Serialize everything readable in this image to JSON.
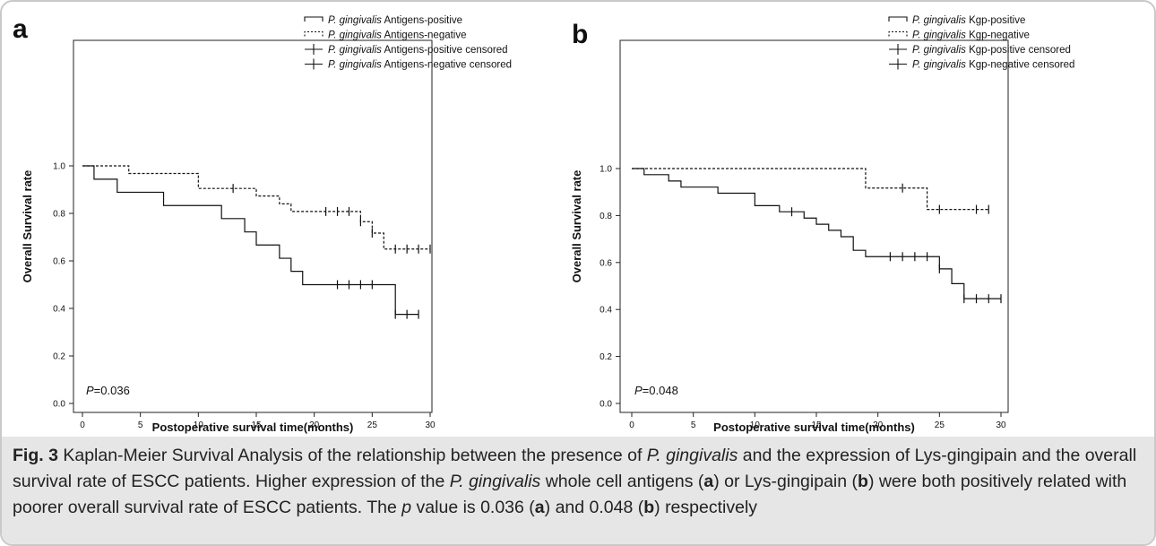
{
  "chart_data": [
    {
      "type": "line",
      "panel_label": "a",
      "xlabel": "Postoperative survival time(months)",
      "ylabel": "Overall Survival rate",
      "xlim": [
        0,
        30
      ],
      "ylim": [
        0,
        1
      ],
      "xticks": [
        "0",
        "5",
        "10",
        "15",
        "20",
        "25",
        "30"
      ],
      "yticks": [
        "0.0",
        "0.2",
        "0.4",
        "0.6",
        "0.8",
        "1.0"
      ],
      "annotation_prefix": "P",
      "annotation_value": "=0.036",
      "legend_placement": "top-right",
      "legend": [
        {
          "name_italic": "P. gingivalis",
          "name_rest": " Antigens-positive",
          "style": "solid"
        },
        {
          "name_italic": "P. gingivalis",
          "name_rest": " Antigens-negative",
          "style": "dashed"
        },
        {
          "name_italic": "P. gingivalis",
          "name_rest": " Antigens-positive censored",
          "style": "censor"
        },
        {
          "name_italic": "P. gingivalis",
          "name_rest": " Antigens-negative censored",
          "style": "censor"
        }
      ],
      "series": [
        {
          "style": "solid",
          "end_x": 29,
          "steps": [
            [
              0,
              1.0
            ],
            [
              1,
              0.944
            ],
            [
              3,
              0.889
            ],
            [
              7,
              0.833
            ],
            [
              12,
              0.778
            ],
            [
              14,
              0.722
            ],
            [
              15,
              0.667
            ],
            [
              17,
              0.611
            ],
            [
              18,
              0.556
            ],
            [
              19,
              0.5
            ],
            [
              27,
              0.375
            ]
          ],
          "censored": [
            [
              22,
              0.5
            ],
            [
              23,
              0.5
            ],
            [
              24,
              0.5
            ],
            [
              25,
              0.5
            ],
            [
              27,
              0.375
            ],
            [
              28,
              0.375
            ],
            [
              29,
              0.375
            ]
          ]
        },
        {
          "style": "dashed",
          "end_x": 30,
          "steps": [
            [
              0,
              1.0
            ],
            [
              4,
              0.968
            ],
            [
              10,
              0.905
            ],
            [
              15,
              0.873
            ],
            [
              17,
              0.84
            ],
            [
              18,
              0.808
            ],
            [
              24,
              0.765
            ],
            [
              25,
              0.717
            ],
            [
              26,
              0.65
            ]
          ],
          "censored": [
            [
              13,
              0.905
            ],
            [
              21,
              0.808
            ],
            [
              22,
              0.808
            ],
            [
              23,
              0.808
            ],
            [
              24,
              0.765
            ],
            [
              25,
              0.717
            ],
            [
              27,
              0.65
            ],
            [
              28,
              0.65
            ],
            [
              29,
              0.65
            ],
            [
              30,
              0.65
            ]
          ]
        }
      ]
    },
    {
      "type": "line",
      "panel_label": "b",
      "xlabel": "Postoperative survival time(months)",
      "ylabel": "Overall Survival rate",
      "xlim": [
        0,
        30
      ],
      "ylim": [
        0,
        1
      ],
      "xticks": [
        "0",
        "5",
        "10",
        "15",
        "20",
        "25",
        "30"
      ],
      "yticks": [
        "0.0",
        "0.2",
        "0.4",
        "0.6",
        "0.8",
        "1.0"
      ],
      "annotation_prefix": "P",
      "annotation_value": "=0.048",
      "legend_placement": "top-right",
      "legend": [
        {
          "name_italic": "P. gingivalis",
          "name_rest": " Kgp-positive",
          "style": "solid"
        },
        {
          "name_italic": "P. gingivalis",
          "name_rest": " Kgp-negative",
          "style": "dashed"
        },
        {
          "name_italic": "P. gingivalis",
          "name_rest": " Kgp-positive censored",
          "style": "censor"
        },
        {
          "name_italic": "P. gingivalis",
          "name_rest": " Kgp-negative censored",
          "style": "censor"
        }
      ],
      "series": [
        {
          "style": "solid",
          "end_x": 30,
          "steps": [
            [
              0,
              1.0
            ],
            [
              1,
              0.974
            ],
            [
              3,
              0.947
            ],
            [
              4,
              0.921
            ],
            [
              7,
              0.895
            ],
            [
              10,
              0.842
            ],
            [
              12,
              0.816
            ],
            [
              14,
              0.789
            ],
            [
              15,
              0.763
            ],
            [
              16,
              0.737
            ],
            [
              17,
              0.71
            ],
            [
              18,
              0.652
            ],
            [
              19,
              0.625
            ],
            [
              25,
              0.573
            ],
            [
              26,
              0.51
            ],
            [
              27,
              0.446
            ]
          ],
          "censored": [
            [
              13,
              0.816
            ],
            [
              21,
              0.625
            ],
            [
              22,
              0.625
            ],
            [
              23,
              0.625
            ],
            [
              24,
              0.625
            ],
            [
              25,
              0.573
            ],
            [
              27,
              0.446
            ],
            [
              28,
              0.446
            ],
            [
              29,
              0.446
            ],
            [
              30,
              0.446
            ]
          ]
        },
        {
          "style": "dashed",
          "end_x": 29,
          "steps": [
            [
              0,
              1.0
            ],
            [
              19,
              0.917
            ],
            [
              24,
              0.826
            ]
          ],
          "censored": [
            [
              22,
              0.917
            ],
            [
              25,
              0.826
            ],
            [
              28,
              0.826
            ],
            [
              29,
              0.826
            ]
          ]
        }
      ]
    }
  ],
  "caption": {
    "fig_label": "Fig. 3",
    "line1_a": " Kaplan-Meier Survival Analysis of the relationship between the presence of ",
    "line1_i": "P. gingivalis",
    "line1_b": " and the expression of Lys-gingipain and the overall",
    "line2_a": "survival rate of ESCC patients. Higher expression of the ",
    "line2_i": "P. gingivalis",
    "line2_b": " whole cell antigens (",
    "line2_bold1": "a",
    "line2_c": ") or Lys-gingipain (",
    "line2_bold2": "b",
    "line2_d": ") were both positively related with",
    "line3_a": "poorer overall survival rate of ESCC patients. The ",
    "line3_i": "p",
    "line3_b": " value is 0.036 (",
    "line3_bold1": "a",
    "line3_c": ") and 0.048 (",
    "line3_bold2": "b",
    "line3_d": ") respectively"
  }
}
